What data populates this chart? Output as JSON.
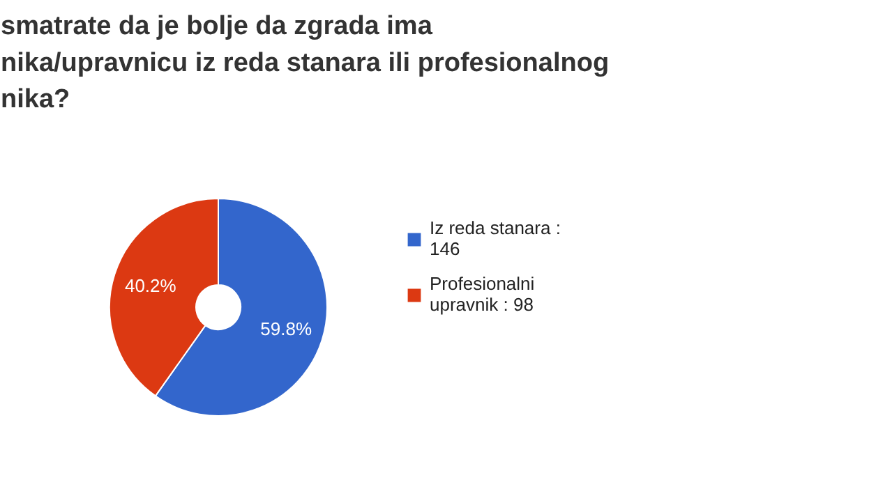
{
  "chart_data": {
    "type": "donut",
    "title": "smatrate da je bolje da zgrada ima\nnika/upravnicu iz reda stanara ili profesionalnog\nnika?",
    "categories": [
      "Iz reda stanara : 146",
      "Profesionalni upravnik : 98"
    ],
    "values": [
      59.8,
      40.2
    ],
    "colors": [
      "#3366cc",
      "#dc3912"
    ],
    "value_labels": [
      "59.8%",
      "40.2%"
    ],
    "legend": "right"
  }
}
